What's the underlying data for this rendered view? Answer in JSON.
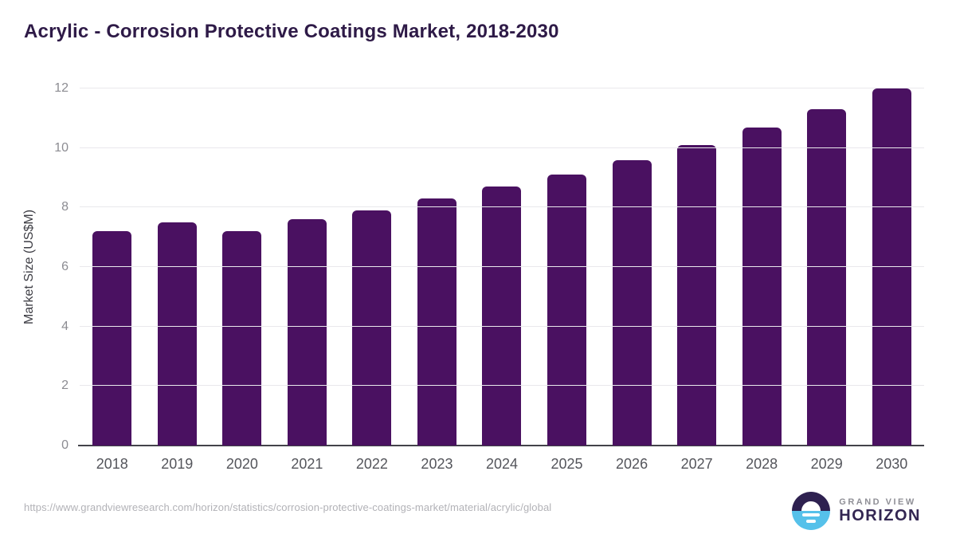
{
  "title": "Acrylic - Corrosion Protective Coatings Market, 2018-2030",
  "chart_data": {
    "type": "bar",
    "categories": [
      "2018",
      "2019",
      "2020",
      "2021",
      "2022",
      "2023",
      "2024",
      "2025",
      "2026",
      "2027",
      "2028",
      "2029",
      "2030"
    ],
    "values": [
      7.2,
      7.5,
      7.2,
      7.6,
      7.9,
      8.3,
      8.7,
      9.1,
      9.6,
      10.1,
      10.7,
      11.3,
      12.0
    ],
    "title": "Acrylic - Corrosion Protective Coatings Market, 2018-2030",
    "xlabel": "",
    "ylabel": "Market Size (US$M)",
    "ylim": [
      0,
      12
    ],
    "yticks": [
      0,
      2,
      4,
      6,
      8,
      10,
      12
    ],
    "grid": "horizontal",
    "legend": "none",
    "bar_color": "#4a1161"
  },
  "footer": {
    "source_url": "https://www.grandviewresearch.com/horizon/statistics/corrosion-protective-coatings-market/material/acrylic/global",
    "logo": {
      "top_text": "GRAND VIEW",
      "bottom_text": "HORIZON"
    }
  },
  "colors": {
    "title": "#2e1a47",
    "bar": "#4a1161",
    "gridline": "#e9e8ec",
    "axis_line": "#43434a",
    "y_tick_label": "#8c8c92",
    "x_tick_label": "#54555b",
    "source_url": "#b2b2b7",
    "logo_blue": "#56c1ea",
    "logo_purple": "#2e2150"
  }
}
